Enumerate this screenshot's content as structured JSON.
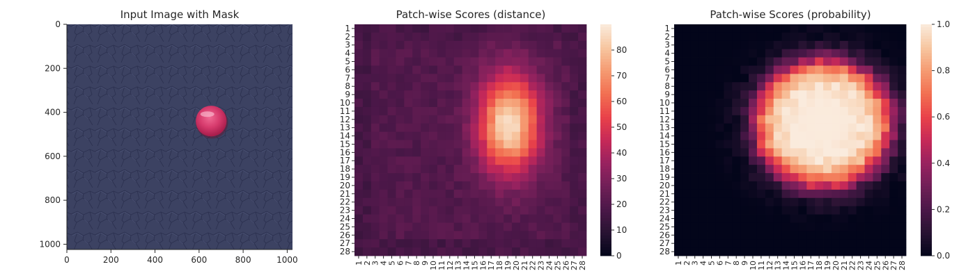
{
  "chart_data": [
    {
      "type": "image",
      "title": "Input Image with Mask",
      "xlim": [
        0,
        1024
      ],
      "ylim": [
        1024,
        0
      ],
      "xticks": [
        0,
        200,
        400,
        600,
        800,
        1000
      ],
      "yticks": [
        0,
        200,
        400,
        600,
        800,
        1000
      ],
      "background_color": "#3b4160",
      "object": {
        "shape": "circle",
        "center": [
          655,
          440
        ],
        "radius": 70,
        "color": "#d23a6a"
      }
    },
    {
      "type": "heatmap",
      "title": "Patch-wise Scores (distance)",
      "rows": [
        "1",
        "2",
        "3",
        "4",
        "5",
        "6",
        "7",
        "8",
        "9",
        "10",
        "11",
        "12",
        "13",
        "14",
        "15",
        "16",
        "17",
        "18",
        "19",
        "20",
        "21",
        "22",
        "23",
        "24",
        "25",
        "26",
        "27",
        "28"
      ],
      "cols": [
        "1",
        "2",
        "3",
        "4",
        "5",
        "6",
        "7",
        "8",
        "9",
        "10",
        "11",
        "12",
        "13",
        "14",
        "15",
        "16",
        "17",
        "18",
        "19",
        "20",
        "21",
        "22",
        "23",
        "24",
        "25",
        "26",
        "27",
        "28"
      ],
      "colormap": "rocket",
      "vmin": 0,
      "vmax": 90,
      "colorbar_ticks": [
        0,
        10,
        20,
        30,
        40,
        50,
        60,
        70,
        80
      ],
      "model": {
        "baseline": 20,
        "peak": 88,
        "center_row": 12.5,
        "center_col": 19.2,
        "sigma_row": 4.2,
        "sigma_col": 2.6
      }
    },
    {
      "type": "heatmap",
      "title": "Patch-wise Scores (probability)",
      "rows": [
        "1",
        "2",
        "3",
        "4",
        "5",
        "6",
        "7",
        "8",
        "9",
        "10",
        "11",
        "12",
        "13",
        "14",
        "15",
        "16",
        "17",
        "18",
        "19",
        "20",
        "21",
        "22",
        "23",
        "24",
        "25",
        "26",
        "27",
        "28"
      ],
      "cols": [
        "1",
        "2",
        "3",
        "4",
        "5",
        "6",
        "7",
        "8",
        "9",
        "10",
        "11",
        "12",
        "13",
        "14",
        "15",
        "16",
        "17",
        "18",
        "19",
        "20",
        "21",
        "22",
        "23",
        "24",
        "25",
        "26",
        "27",
        "28"
      ],
      "colormap": "rocket",
      "vmin": 0,
      "vmax": 1,
      "colorbar_ticks": [
        "0.0",
        "0.2",
        "0.4",
        "0.6",
        "0.8",
        "1.0"
      ],
      "model": {
        "center_row": 12.5,
        "center_col": 18.5,
        "radius_row": 8.0,
        "radius_col": 8.5
      }
    }
  ]
}
